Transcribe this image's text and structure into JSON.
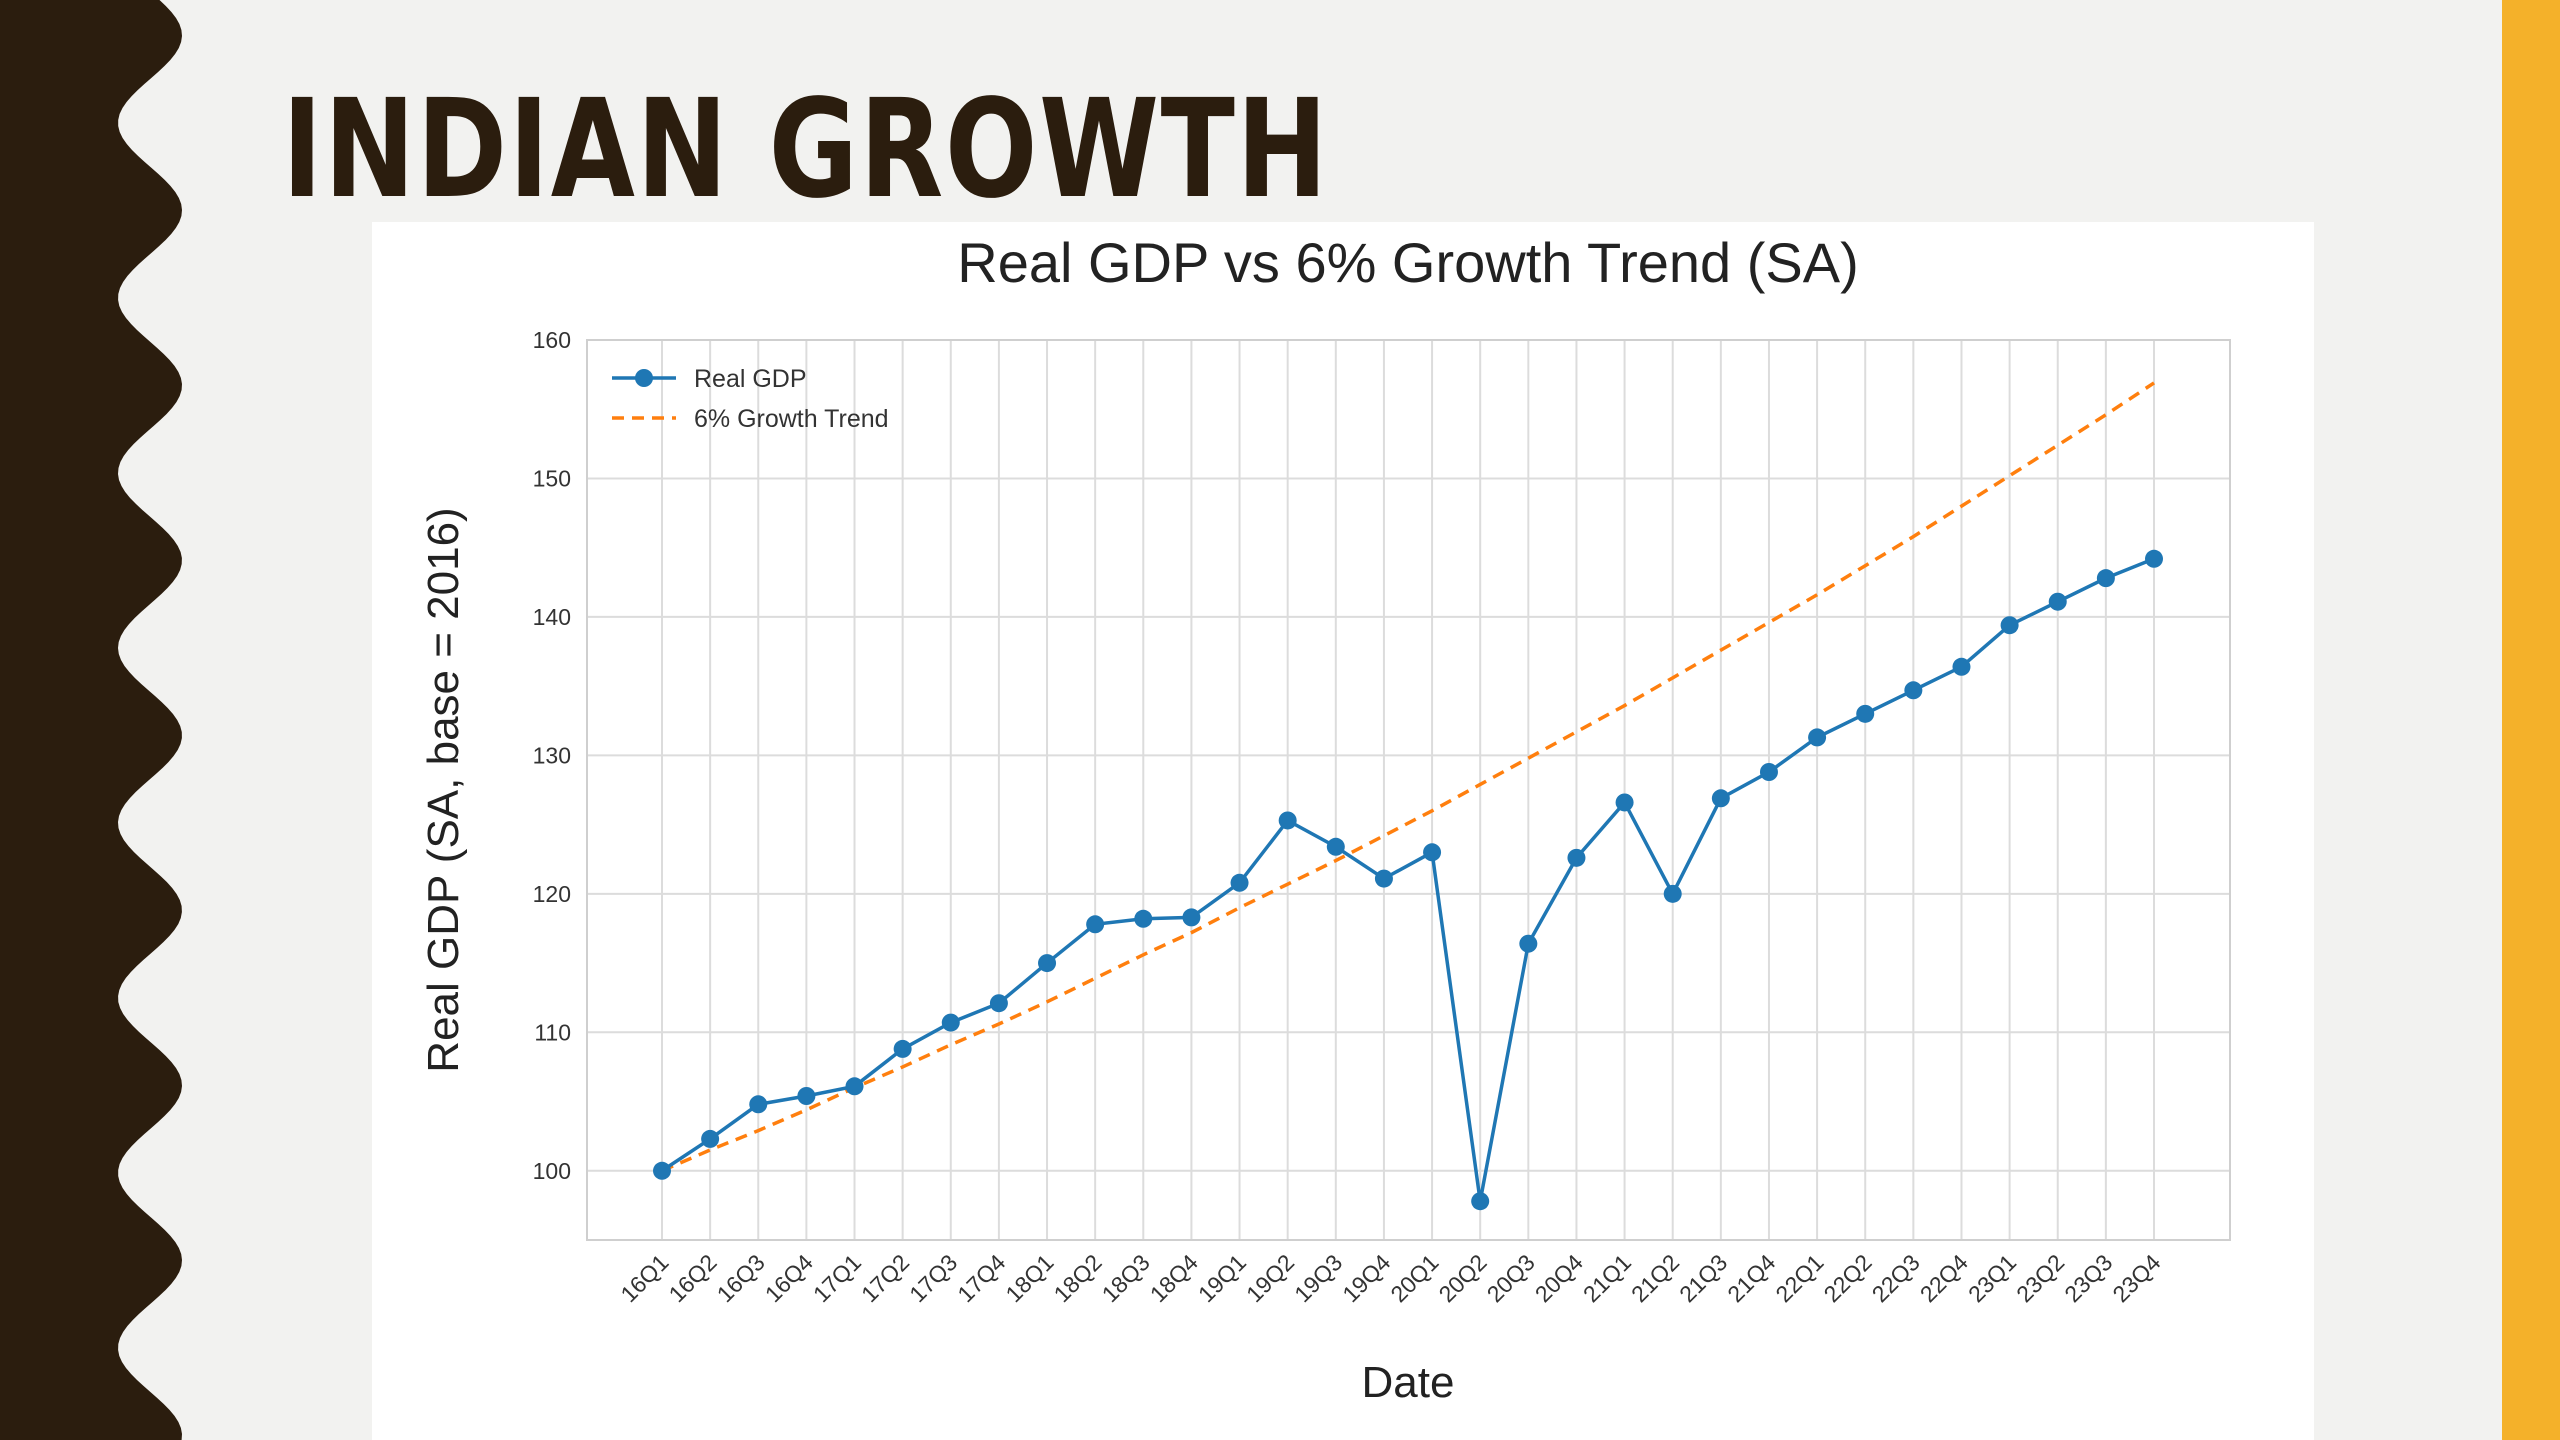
{
  "slide": {
    "title": "INDIAN GROWTH",
    "colors": {
      "left_band": "#2b1d0e",
      "right_band": "#f4b12a",
      "background": "#f2f2f0"
    }
  },
  "chart_data": {
    "type": "line",
    "title": "Real GDP vs 6% Growth Trend (SA)",
    "xlabel": "Date",
    "ylabel": "Real GDP (SA, base = 2016)",
    "ylim": [
      95,
      160
    ],
    "yticks": [
      100,
      110,
      120,
      130,
      140,
      150,
      160
    ],
    "grid": true,
    "legend_position": "top-left",
    "categories": [
      "16Q1",
      "16Q2",
      "16Q3",
      "16Q4",
      "17Q1",
      "17Q2",
      "17Q3",
      "17Q4",
      "18Q1",
      "18Q2",
      "18Q3",
      "18Q4",
      "19Q1",
      "19Q2",
      "19Q3",
      "19Q4",
      "20Q1",
      "20Q2",
      "20Q3",
      "20Q4",
      "21Q1",
      "21Q2",
      "21Q3",
      "21Q4",
      "22Q1",
      "22Q2",
      "22Q3",
      "22Q4",
      "23Q1",
      "23Q2",
      "23Q3",
      "23Q4"
    ],
    "series": [
      {
        "name": "Real GDP",
        "style": "solid-marker",
        "color": "#1f77b4",
        "values": [
          100.0,
          102.3,
          104.8,
          105.4,
          106.1,
          108.8,
          110.7,
          112.1,
          115.0,
          117.8,
          118.2,
          118.3,
          120.8,
          125.3,
          123.4,
          121.1,
          123.0,
          97.8,
          116.4,
          122.6,
          126.6,
          120.0,
          126.9,
          128.8,
          131.3,
          133.0,
          134.7,
          136.4,
          139.4,
          141.1,
          142.8,
          144.2
        ]
      },
      {
        "name": "6% Growth Trend",
        "style": "dashed",
        "color": "#ff7f0e",
        "values": [
          100.0,
          101.5,
          102.9,
          104.4,
          106.0,
          107.5,
          109.1,
          110.6,
          112.2,
          113.9,
          115.6,
          117.2,
          119.0,
          120.7,
          122.4,
          124.2,
          126.0,
          127.9,
          129.8,
          131.7,
          133.6,
          135.6,
          137.6,
          139.6,
          141.6,
          143.7,
          145.8,
          148.0,
          150.2,
          152.4,
          154.6,
          156.9
        ]
      }
    ]
  }
}
